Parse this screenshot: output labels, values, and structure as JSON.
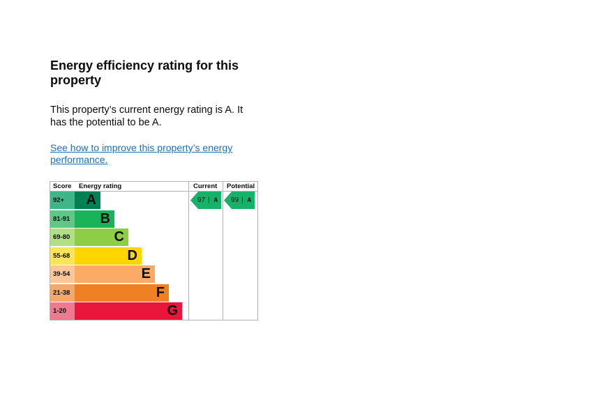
{
  "heading": "Energy efficiency rating for this property",
  "summary": "This property’s current energy rating is A. It has the potential to be A.",
  "improve_link": "See how to improve this property’s energy performance.",
  "chart": {
    "headers": {
      "score": "Score",
      "energy_rating": "Energy rating",
      "current": "Current",
      "potential": "Potential"
    },
    "bands": [
      {
        "score": "92+",
        "letter": "A",
        "color": "#008054",
        "score_bg": "#3fb58a"
      },
      {
        "score": "81-91",
        "letter": "B",
        "color": "#19b459",
        "score_bg": "#5ec986"
      },
      {
        "score": "69-80",
        "letter": "C",
        "color": "#8dce46",
        "score_bg": "#b1df83"
      },
      {
        "score": "55-68",
        "letter": "D",
        "color": "#ffd500",
        "score_bg": "#ffe359"
      },
      {
        "score": "39-54",
        "letter": "E",
        "color": "#fcaa65",
        "score_bg": "#fdc79a"
      },
      {
        "score": "21-38",
        "letter": "F",
        "color": "#ef8023",
        "score_bg": "#f4a86a"
      },
      {
        "score": "1-20",
        "letter": "G",
        "color": "#e9153b",
        "score_bg": "#f07990"
      }
    ],
    "current": {
      "score": "97",
      "separator": "|",
      "letter": "A",
      "color": "#17b26a"
    },
    "potential": {
      "score": "99",
      "separator": "|",
      "letter": "A",
      "color": "#17b26a"
    }
  }
}
